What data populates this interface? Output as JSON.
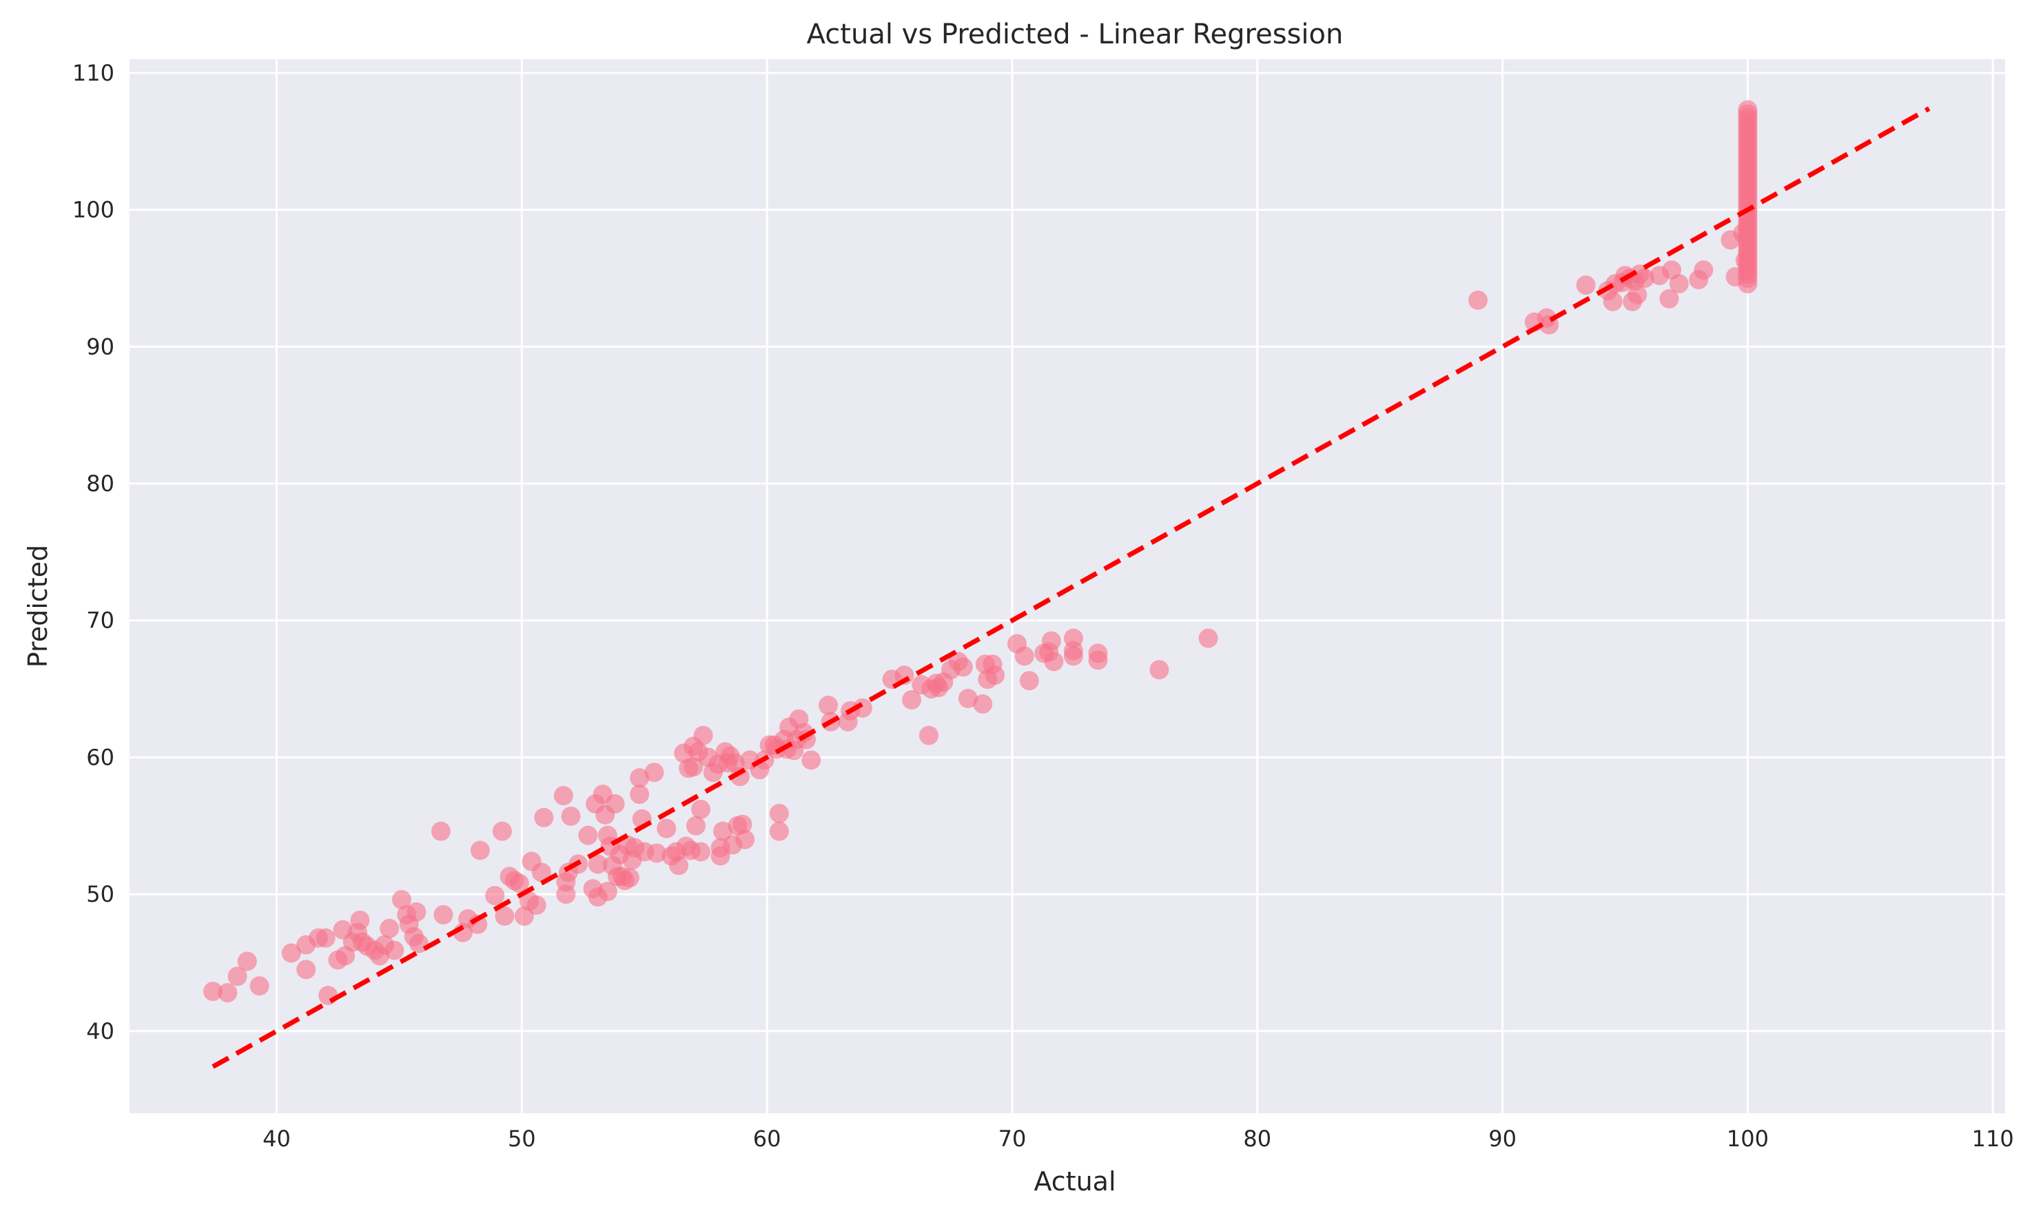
{
  "chart_data": {
    "type": "scatter",
    "title": "Actual vs Predicted - Linear Regression",
    "xlabel": "Actual",
    "ylabel": "Predicted",
    "xlim": [
      34,
      110.5
    ],
    "ylim": [
      34,
      111
    ],
    "xticks": [
      40,
      50,
      60,
      70,
      80,
      90,
      100,
      110
    ],
    "yticks": [
      40,
      50,
      60,
      70,
      80,
      90,
      100,
      110
    ],
    "grid": true,
    "legend": "none",
    "colors": {
      "background": "#eaeaf2",
      "grid": "#ffffff",
      "points": "#f77189",
      "reference_line": "#ff0000"
    },
    "reference_line": {
      "x": [
        37.4,
        107.4
      ],
      "y": [
        37.4,
        107.4
      ],
      "style": "dashed"
    },
    "series": [
      {
        "points": [
          [
            37.4,
            42.9
          ],
          [
            38.0,
            42.8
          ],
          [
            38.4,
            44.0
          ],
          [
            38.8,
            45.1
          ],
          [
            39.3,
            43.3
          ],
          [
            40.6,
            45.7
          ],
          [
            41.2,
            46.3
          ],
          [
            41.2,
            44.5
          ],
          [
            41.7,
            46.8
          ],
          [
            42.0,
            46.8
          ],
          [
            42.1,
            42.6
          ],
          [
            42.5,
            45.2
          ],
          [
            42.7,
            47.4
          ],
          [
            42.8,
            45.5
          ],
          [
            43.1,
            46.5
          ],
          [
            43.3,
            47.2
          ],
          [
            43.4,
            48.1
          ],
          [
            43.5,
            46.5
          ],
          [
            43.7,
            46.2
          ],
          [
            44.0,
            45.9
          ],
          [
            44.2,
            45.5
          ],
          [
            44.4,
            46.3
          ],
          [
            44.6,
            47.5
          ],
          [
            44.8,
            45.9
          ],
          [
            45.1,
            49.6
          ],
          [
            45.3,
            48.5
          ],
          [
            45.4,
            47.8
          ],
          [
            45.6,
            46.9
          ],
          [
            45.7,
            48.7
          ],
          [
            45.8,
            46.4
          ],
          [
            46.7,
            54.6
          ],
          [
            46.8,
            48.5
          ],
          [
            47.6,
            47.2
          ],
          [
            47.8,
            48.2
          ],
          [
            48.2,
            47.8
          ],
          [
            48.3,
            53.2
          ],
          [
            48.9,
            49.9
          ],
          [
            49.2,
            54.6
          ],
          [
            49.3,
            48.4
          ],
          [
            49.5,
            51.3
          ],
          [
            49.7,
            51.0
          ],
          [
            49.9,
            50.8
          ],
          [
            50.1,
            48.4
          ],
          [
            50.3,
            49.5
          ],
          [
            50.4,
            52.4
          ],
          [
            50.6,
            49.2
          ],
          [
            50.8,
            51.6
          ],
          [
            50.9,
            55.6
          ],
          [
            51.7,
            57.2
          ],
          [
            51.8,
            50.9
          ],
          [
            51.8,
            50.0
          ],
          [
            51.9,
            51.6
          ],
          [
            52.0,
            55.7
          ],
          [
            52.3,
            52.2
          ],
          [
            52.7,
            54.3
          ],
          [
            52.9,
            50.4
          ],
          [
            53.0,
            56.6
          ],
          [
            53.1,
            52.2
          ],
          [
            53.1,
            49.8
          ],
          [
            53.3,
            57.3
          ],
          [
            53.4,
            55.8
          ],
          [
            53.5,
            50.2
          ],
          [
            53.5,
            54.3
          ],
          [
            53.6,
            53.5
          ],
          [
            53.7,
            52.1
          ],
          [
            53.8,
            56.6
          ],
          [
            53.9,
            51.3
          ],
          [
            54.0,
            52.9
          ],
          [
            54.1,
            51.3
          ],
          [
            54.2,
            51.0
          ],
          [
            54.3,
            53.6
          ],
          [
            54.4,
            51.2
          ],
          [
            54.5,
            52.5
          ],
          [
            54.6,
            53.4
          ],
          [
            54.8,
            57.3
          ],
          [
            54.8,
            58.5
          ],
          [
            54.9,
            55.5
          ],
          [
            55.0,
            53.1
          ],
          [
            55.4,
            58.9
          ],
          [
            55.5,
            53.0
          ],
          [
            55.9,
            54.8
          ],
          [
            56.1,
            52.8
          ],
          [
            56.3,
            53.1
          ],
          [
            56.4,
            52.1
          ],
          [
            56.6,
            60.3
          ],
          [
            56.7,
            53.5
          ],
          [
            56.8,
            59.2
          ],
          [
            56.9,
            53.2
          ],
          [
            57.0,
            59.3
          ],
          [
            57.0,
            60.8
          ],
          [
            57.1,
            55.0
          ],
          [
            57.2,
            60.4
          ],
          [
            57.3,
            56.2
          ],
          [
            57.3,
            53.1
          ],
          [
            57.4,
            61.6
          ],
          [
            57.6,
            60.0
          ],
          [
            57.8,
            58.9
          ],
          [
            58.0,
            59.5
          ],
          [
            58.1,
            52.8
          ],
          [
            58.1,
            53.4
          ],
          [
            58.2,
            54.6
          ],
          [
            58.3,
            60.4
          ],
          [
            58.4,
            59.6
          ],
          [
            58.5,
            60.1
          ],
          [
            58.6,
            53.6
          ],
          [
            58.7,
            59.6
          ],
          [
            58.8,
            55.0
          ],
          [
            58.9,
            58.6
          ],
          [
            59.0,
            55.1
          ],
          [
            59.1,
            54.0
          ],
          [
            59.3,
            59.8
          ],
          [
            59.7,
            59.1
          ],
          [
            59.9,
            59.8
          ],
          [
            60.1,
            60.9
          ],
          [
            60.3,
            60.9
          ],
          [
            60.4,
            60.6
          ],
          [
            60.5,
            54.6
          ],
          [
            60.5,
            55.9
          ],
          [
            60.7,
            61.3
          ],
          [
            60.8,
            60.6
          ],
          [
            60.9,
            62.2
          ],
          [
            61.1,
            60.5
          ],
          [
            61.2,
            61.3
          ],
          [
            61.3,
            62.8
          ],
          [
            61.5,
            61.8
          ],
          [
            61.6,
            61.3
          ],
          [
            61.8,
            59.8
          ],
          [
            62.5,
            63.8
          ],
          [
            62.6,
            62.6
          ],
          [
            63.3,
            62.6
          ],
          [
            63.4,
            63.4
          ],
          [
            63.9,
            63.6
          ],
          [
            65.1,
            65.7
          ],
          [
            65.6,
            66.0
          ],
          [
            65.9,
            64.2
          ],
          [
            66.3,
            65.3
          ],
          [
            66.6,
            61.6
          ],
          [
            66.7,
            65.0
          ],
          [
            66.9,
            65.4
          ],
          [
            67.0,
            65.1
          ],
          [
            67.2,
            65.5
          ],
          [
            67.5,
            66.4
          ],
          [
            67.8,
            67.0
          ],
          [
            68.0,
            66.6
          ],
          [
            68.2,
            64.3
          ],
          [
            68.8,
            63.9
          ],
          [
            68.9,
            66.8
          ],
          [
            69.0,
            65.7
          ],
          [
            69.2,
            66.8
          ],
          [
            69.3,
            66.0
          ],
          [
            70.2,
            68.3
          ],
          [
            70.5,
            67.4
          ],
          [
            70.7,
            65.6
          ],
          [
            71.3,
            67.6
          ],
          [
            71.5,
            67.7
          ],
          [
            71.6,
            68.5
          ],
          [
            71.7,
            67.0
          ],
          [
            72.5,
            67.4
          ],
          [
            72.5,
            67.8
          ],
          [
            72.5,
            68.7
          ],
          [
            73.5,
            67.1
          ],
          [
            73.5,
            67.6
          ],
          [
            76.0,
            66.4
          ],
          [
            78.0,
            68.7
          ],
          [
            89.0,
            93.4
          ],
          [
            91.3,
            91.8
          ],
          [
            91.8,
            92.1
          ],
          [
            91.9,
            91.6
          ],
          [
            93.4,
            94.5
          ],
          [
            94.3,
            94.1
          ],
          [
            94.5,
            93.3
          ],
          [
            94.6,
            94.6
          ],
          [
            94.9,
            94.7
          ],
          [
            95.0,
            95.2
          ],
          [
            95.2,
            95.0
          ],
          [
            95.3,
            93.3
          ],
          [
            95.4,
            94.8
          ],
          [
            95.5,
            93.8
          ],
          [
            95.6,
            95.3
          ],
          [
            95.8,
            95.0
          ],
          [
            96.4,
            95.2
          ],
          [
            96.8,
            93.5
          ],
          [
            96.9,
            95.6
          ],
          [
            97.2,
            94.6
          ],
          [
            98.0,
            94.9
          ],
          [
            98.2,
            95.6
          ],
          [
            99.3,
            97.8
          ],
          [
            99.5,
            95.1
          ],
          [
            99.8,
            98.3
          ],
          [
            99.9,
            96.3
          ],
          [
            100,
            94.6
          ],
          [
            100,
            95.0
          ],
          [
            100,
            95.3
          ],
          [
            100,
            95.6
          ],
          [
            100,
            95.9
          ],
          [
            100,
            96.2
          ],
          [
            100,
            96.5
          ],
          [
            100,
            96.8
          ],
          [
            100,
            97.1
          ],
          [
            100,
            97.4
          ],
          [
            100,
            97.7
          ],
          [
            100,
            98.0
          ],
          [
            100,
            98.3
          ],
          [
            100,
            98.6
          ],
          [
            100,
            98.9
          ],
          [
            100,
            99.2
          ],
          [
            100,
            99.5
          ],
          [
            100,
            99.8
          ],
          [
            100,
            100.1
          ],
          [
            100,
            100.4
          ],
          [
            100,
            100.7
          ],
          [
            100,
            101.0
          ],
          [
            100,
            101.3
          ],
          [
            100,
            101.6
          ],
          [
            100,
            101.9
          ],
          [
            100,
            102.2
          ],
          [
            100,
            102.5
          ],
          [
            100,
            102.8
          ],
          [
            100,
            103.1
          ],
          [
            100,
            103.4
          ],
          [
            100,
            103.7
          ],
          [
            100,
            104.0
          ],
          [
            100,
            104.3
          ],
          [
            100,
            104.6
          ],
          [
            100,
            104.9
          ],
          [
            100,
            105.2
          ],
          [
            100,
            105.5
          ],
          [
            100,
            105.8
          ],
          [
            100,
            106.1
          ],
          [
            100,
            106.4
          ],
          [
            100,
            106.7
          ],
          [
            100,
            107.0
          ],
          [
            100,
            107.3
          ]
        ]
      }
    ]
  }
}
